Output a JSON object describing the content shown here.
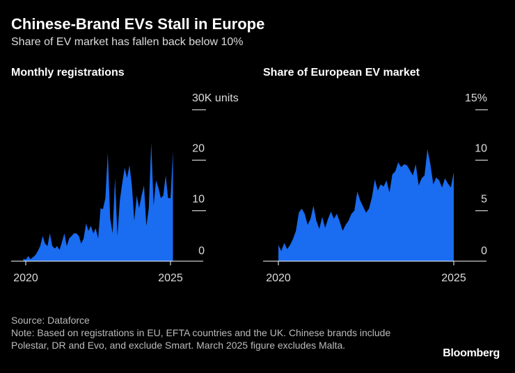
{
  "title": "Chinese-Brand EVs Stall in Europe",
  "subtitle": "Share of EV market has fallen back below 10%",
  "source": "Source: Dataforce",
  "note": "Note: Based on registrations in EU, EFTA countries and the UK. Chinese brands include Polestar, DR and Evo, and exclude Smart. March 2025 figure excludes Malta.",
  "brand": "Bloomberg",
  "colors": {
    "area": "#1a6cf0",
    "background": "#000000",
    "axis": "#ffffff"
  },
  "chart_data": [
    {
      "type": "area",
      "title": "Monthly registrations",
      "unit_label": "30K units",
      "ylim": [
        0,
        30
      ],
      "yticks": [
        "0",
        "10",
        "20",
        "30K units"
      ],
      "ytick_values": [
        0,
        10,
        20,
        30
      ],
      "xticks": [
        "2020",
        "2025"
      ],
      "xtick_values": [
        2020,
        2025
      ],
      "x_start": 2019.917,
      "x_step": 0.08333,
      "values": [
        0.5,
        0.3,
        1.0,
        0.4,
        0.8,
        1.2,
        2.0,
        3.0,
        5.0,
        3.5,
        3.0,
        5.5,
        3.0,
        2.5,
        3.0,
        2.2,
        3.8,
        5.5,
        3.0,
        4.5,
        5.0,
        5.5,
        5.5,
        5.0,
        3.5,
        4.5,
        7.5,
        6.0,
        7.0,
        5.5,
        6.5,
        4.5,
        10.5,
        10.3,
        12.5,
        21.5,
        8.5,
        5.5,
        16.5,
        5.0,
        12.0,
        15.5,
        18.5,
        16.5,
        19.0,
        15.0,
        8.0,
        13.0,
        10.5,
        13.0,
        15.0,
        7.0,
        10.5,
        23.5,
        11.0,
        16.0,
        14.5,
        12.5,
        13.0,
        17.0,
        12.5,
        12.5,
        21.8
      ]
    },
    {
      "type": "area",
      "title": "Share of European EV market",
      "unit_label": "15%",
      "ylim": [
        0,
        15
      ],
      "yticks": [
        "0",
        "5",
        "10",
        "15%"
      ],
      "ytick_values": [
        0,
        5,
        10,
        15
      ],
      "xticks": [
        "2020",
        "2025"
      ],
      "xtick_values": [
        2020,
        2025
      ],
      "x_start": 2020.0,
      "x_step": 0.08333,
      "values": [
        1.6,
        1.0,
        1.8,
        1.2,
        1.6,
        2.2,
        3.0,
        4.8,
        5.2,
        4.7,
        3.6,
        4.2,
        5.5,
        4.0,
        3.2,
        4.4,
        3.3,
        4.2,
        4.9,
        4.2,
        4.7,
        3.9,
        3.0,
        3.6,
        4.0,
        4.7,
        5.0,
        6.9,
        6.0,
        5.4,
        4.8,
        5.2,
        6.3,
        8.1,
        7.0,
        7.6,
        7.4,
        8.0,
        6.8,
        8.6,
        8.9,
        9.8,
        9.3,
        9.6,
        9.5,
        9.0,
        8.5,
        9.6,
        7.5,
        8.2,
        8.5,
        11.1,
        9.6,
        7.6,
        8.3,
        8.0,
        7.3,
        8.2,
        7.7,
        7.3,
        8.8
      ]
    }
  ]
}
